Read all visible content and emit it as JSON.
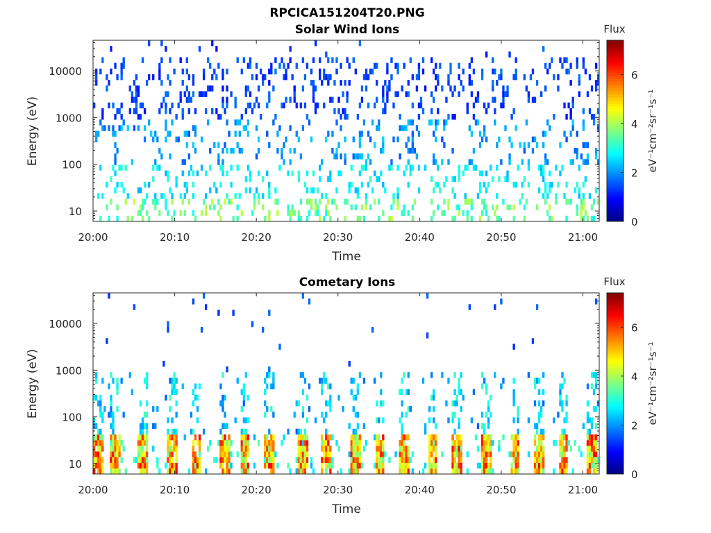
{
  "chart_data": [
    {
      "type": "heatmap",
      "figure_title": "RPCICA151204T20.PNG",
      "title": "Solar Wind Ions",
      "xlabel": "Time",
      "ylabel": "Energy (eV)",
      "x_ticks": [
        "20:00",
        "20:10",
        "20:20",
        "20:30",
        "20:40",
        "20:50",
        "21:00"
      ],
      "x_range": [
        "20:00",
        "21:02"
      ],
      "y_scale": "log",
      "y_ticks": [
        10,
        100,
        1000,
        10000
      ],
      "y_tick_labels": [
        "10",
        "100",
        "1000",
        "10000"
      ],
      "y_range": [
        6,
        45000
      ],
      "colorbar": {
        "title": "Flux",
        "label": "eV⁻¹cm⁻²sr⁻¹s⁻¹",
        "range": [
          0,
          7.4
        ],
        "ticks": [
          0,
          2,
          4,
          6
        ],
        "colormap": "jet"
      },
      "description_bands": [
        {
          "energy_range": [
            1000,
            20000
          ],
          "flux_range": [
            1.0,
            1.8
          ]
        },
        {
          "energy_range": [
            100,
            1000
          ],
          "flux_range": [
            1.5,
            2.5
          ]
        },
        {
          "energy_range": [
            20,
            100
          ],
          "flux_range": [
            2.2,
            3.2
          ]
        },
        {
          "energy_range": [
            6,
            20
          ],
          "flux_range": [
            2.8,
            4.3
          ]
        }
      ]
    },
    {
      "type": "heatmap",
      "title": "Cometary Ions",
      "xlabel": "Time",
      "ylabel": "Energy (eV)",
      "x_ticks": [
        "20:00",
        "20:10",
        "20:20",
        "20:30",
        "20:40",
        "20:50",
        "21:00"
      ],
      "x_range": [
        "20:00",
        "21:02"
      ],
      "y_scale": "log",
      "y_ticks": [
        10,
        100,
        1000,
        10000
      ],
      "y_tick_labels": [
        "10",
        "100",
        "1000",
        "10000"
      ],
      "y_range": [
        6,
        45000
      ],
      "colorbar": {
        "title": "Flux",
        "label": "eV⁻¹cm⁻²sr⁻¹s⁻¹",
        "range": [
          0,
          7.4
        ],
        "ticks": [
          0,
          2,
          4,
          6
        ],
        "colormap": "jet"
      },
      "bursts_minutes": [
        0.5,
        2.5,
        6.0,
        9.5,
        12.5,
        16.0,
        18.5,
        21.5,
        25.5,
        28.5,
        32.0,
        35.0,
        38.0,
        41.5,
        44.5,
        48.0,
        51.5,
        54.5,
        57.5,
        61.0
      ],
      "burst_peak_flux": 6.5,
      "burst_energy_range": [
        6,
        40
      ]
    }
  ],
  "colors": {
    "background": "#ffffff",
    "axis": "#262626"
  }
}
